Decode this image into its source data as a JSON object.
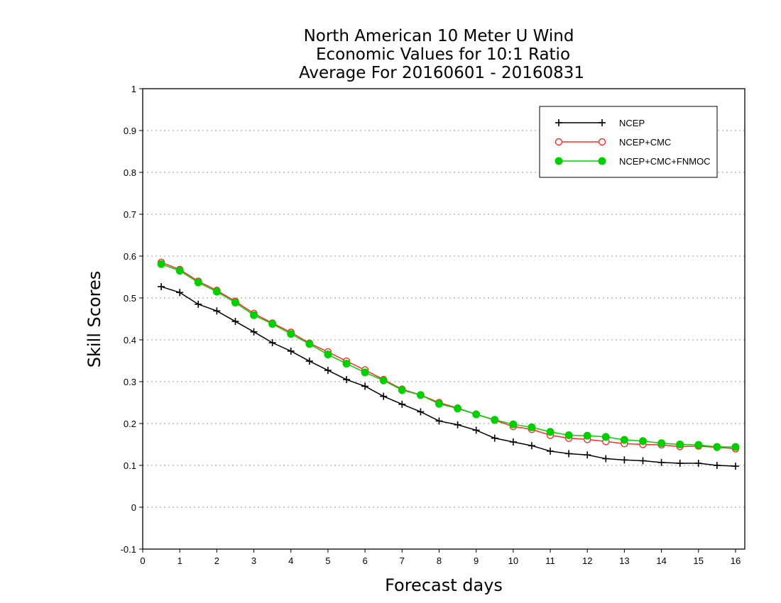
{
  "chart_data": {
    "type": "line",
    "title_lines": [
      "North American 10 Meter U Wind",
      "Economic Values for 10:1 Ratio",
      "Average For 20160601 - 20160831"
    ],
    "xlabel": "Forecast days",
    "ylabel": "Skill Scores",
    "xlim": [
      0,
      16.25
    ],
    "ylim": [
      -0.1,
      1
    ],
    "x_ticks": [
      0,
      1,
      2,
      3,
      4,
      5,
      6,
      7,
      8,
      9,
      10,
      11,
      12,
      13,
      14,
      15,
      16
    ],
    "x_tick_labels": [
      "0",
      "1",
      "2",
      "3",
      "4",
      "5",
      "6",
      "7",
      "8",
      "9",
      "10",
      "11",
      "12",
      "13",
      "14",
      "15",
      "16"
    ],
    "y_ticks": [
      -0.1,
      0,
      0.1,
      0.2,
      0.3,
      0.4,
      0.5,
      0.6,
      0.7,
      0.8,
      0.9,
      1
    ],
    "y_tick_labels": [
      "-0.1",
      "0",
      "0.1",
      "0.2",
      "0.3",
      "0.4",
      "0.5",
      "0.6",
      "0.7",
      "0.8",
      "0.9",
      "1"
    ],
    "grid": "horizontal dotted",
    "legend_position": "top-right",
    "x": [
      0.5,
      1,
      1.5,
      2,
      2.5,
      3,
      3.5,
      4,
      4.5,
      5,
      5.5,
      6,
      6.5,
      7,
      7.5,
      8,
      8.5,
      9,
      9.5,
      10,
      10.5,
      11,
      11.5,
      12,
      12.5,
      13,
      13.5,
      14,
      14.5,
      15,
      15.5,
      16
    ],
    "series": [
      {
        "name": "NCEP",
        "color": "#000000",
        "marker": "plus",
        "values": [
          0.527,
          0.513,
          0.485,
          0.469,
          0.444,
          0.419,
          0.393,
          0.373,
          0.349,
          0.327,
          0.305,
          0.289,
          0.265,
          0.246,
          0.228,
          0.206,
          0.197,
          0.184,
          0.165,
          0.156,
          0.147,
          0.134,
          0.128,
          0.125,
          0.116,
          0.113,
          0.111,
          0.107,
          0.105,
          0.105,
          0.1,
          0.098
        ]
      },
      {
        "name": "NCEP+CMC",
        "color": "#ff2a2a",
        "marker": "open-circle",
        "values": [
          0.585,
          0.568,
          0.54,
          0.518,
          0.492,
          0.463,
          0.44,
          0.418,
          0.392,
          0.371,
          0.349,
          0.328,
          0.305,
          0.282,
          0.268,
          0.25,
          0.237,
          0.222,
          0.208,
          0.193,
          0.186,
          0.172,
          0.165,
          0.162,
          0.157,
          0.152,
          0.15,
          0.149,
          0.145,
          0.146,
          0.143,
          0.14
        ]
      },
      {
        "name": "NCEP+CMC+FNMOC",
        "color": "#00d000",
        "marker": "filled-circle",
        "values": [
          0.581,
          0.565,
          0.537,
          0.515,
          0.489,
          0.459,
          0.438,
          0.414,
          0.39,
          0.365,
          0.343,
          0.322,
          0.303,
          0.28,
          0.268,
          0.247,
          0.236,
          0.222,
          0.209,
          0.198,
          0.191,
          0.18,
          0.172,
          0.171,
          0.168,
          0.161,
          0.158,
          0.153,
          0.15,
          0.149,
          0.144,
          0.144
        ]
      }
    ]
  }
}
